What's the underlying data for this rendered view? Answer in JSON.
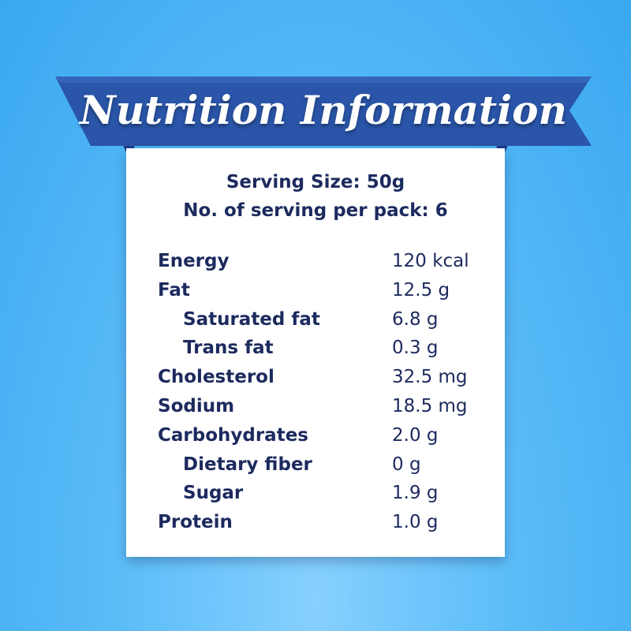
{
  "header": {
    "title": "Nutrition Information"
  },
  "serving": {
    "size": "Serving Size: 50g",
    "per_pack": "No. of serving per pack: 6"
  },
  "table": {
    "rows": [
      {
        "label": "Energy",
        "value": "120 kcal"
      },
      {
        "label": "Fat",
        "value": "12.5 g",
        "sub": [
          {
            "label": "Saturated fat",
            "value": "6.8 g"
          },
          {
            "label": "Trans fat",
            "value": "0.3 g"
          }
        ]
      },
      {
        "label": "Cholesterol",
        "value": "32.5 mg"
      },
      {
        "label": "Sodium",
        "value": "18.5 mg"
      },
      {
        "label": "Carbohydrates",
        "value": "2.0 g",
        "sub": [
          {
            "label": "Dietary fiber",
            "value": "0 g"
          },
          {
            "label": "Sugar",
            "value": "1.9 g"
          }
        ]
      },
      {
        "label": "Protein",
        "value": "1.0 g"
      }
    ]
  }
}
